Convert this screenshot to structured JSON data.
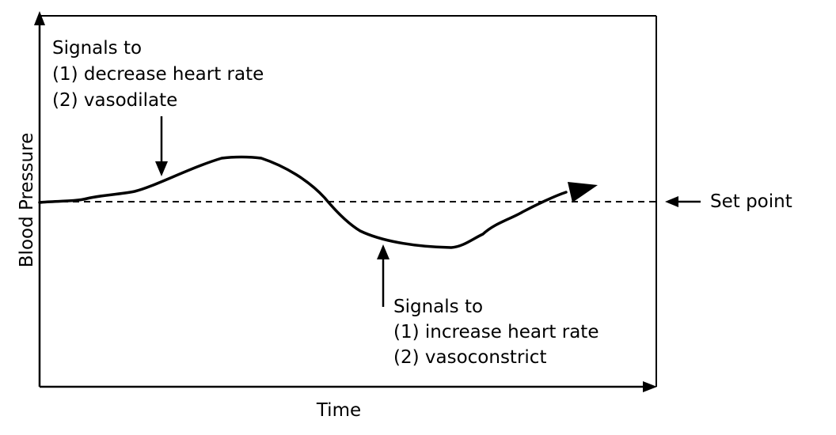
{
  "axes": {
    "x_label": "Time",
    "y_label": "Blood Pressure"
  },
  "set_point": {
    "label": "Set point"
  },
  "annotation_high": {
    "lines": [
      "Signals to",
      "(1) decrease heart rate",
      "(2) vasodilate"
    ]
  },
  "annotation_low": {
    "lines": [
      "Signals to",
      "(1) increase heart rate",
      "(2) vasoconstrict"
    ]
  },
  "colors": {
    "line": "#000000",
    "background": "#ffffff"
  }
}
